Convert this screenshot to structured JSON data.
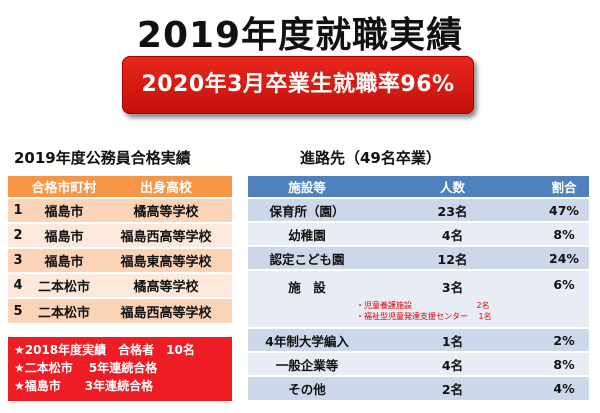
{
  "title": "2019年度就職実績",
  "banner": "2020年3月卒業生就職率96%",
  "exam": {
    "heading": "2019年度公務員合格実績",
    "headers": [
      "合格市町村",
      "出身高校"
    ],
    "rows": [
      {
        "no": "1",
        "city": "福島市",
        "school": "橘高等学校"
      },
      {
        "no": "2",
        "city": "福島市",
        "school": "福島西高等学校"
      },
      {
        "no": "3",
        "city": "福島市",
        "school": "福島東高等学校"
      },
      {
        "no": "4",
        "city": "二本松市",
        "school": "橘高等学校"
      },
      {
        "no": "5",
        "city": "二本松市",
        "school": "福島西高等学校"
      }
    ],
    "notes": [
      "★2018年度実績　合格者　10名",
      "★二本松市　 5年連続合格",
      "★福島市　　3年連続合格"
    ]
  },
  "career": {
    "heading": "進路先（49名卒業）",
    "headers": [
      "施設等",
      "人数",
      "割合"
    ],
    "rows": [
      {
        "facility": "保育所（園）",
        "count": "23名",
        "ratio": "47%"
      },
      {
        "facility": "幼稚園",
        "count": "4名",
        "ratio": "8%"
      },
      {
        "facility": "認定こども園",
        "count": "12名",
        "ratio": "24%"
      },
      {
        "facility": "施　設",
        "count": "3名",
        "ratio": "6%"
      },
      {
        "facility": "4年制大学編入",
        "count": "1名",
        "ratio": "2%"
      },
      {
        "facility": "一般企業等",
        "count": "4名",
        "ratio": "8%"
      },
      {
        "facility": "その他",
        "count": "2名",
        "ratio": "4%"
      }
    ],
    "facility_breakdown": [
      {
        "label": "・児童養護施設",
        "count": "2名"
      },
      {
        "label": "・福祉型児童発達支援センター",
        "count": "1名"
      }
    ]
  }
}
